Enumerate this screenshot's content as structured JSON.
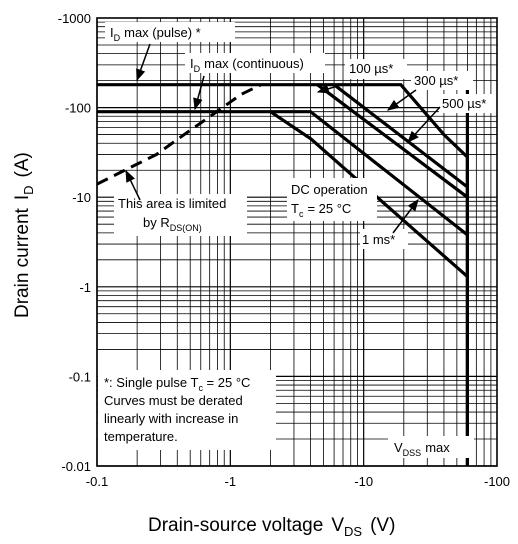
{
  "chart_data": {
    "type": "line",
    "scale": "log-log",
    "x_axis_negative_log": true,
    "y_axis_negative_log": true,
    "xlabel": "Drain-source voltage",
    "xlabel_sub": "DS",
    "xlabel_unit": "(V)",
    "ylabel": "Drain current",
    "ylabel_sub": "D",
    "ylabel_unit": "(A)",
    "xlim": [
      -0.1,
      -100
    ],
    "ylim": [
      -0.01,
      -1000
    ],
    "x_ticks": [
      "-0.1",
      "-1",
      "-10",
      "-100"
    ],
    "y_ticks": [
      "-1000",
      "-100",
      "-10",
      "-1",
      "-0.1",
      "-0.01"
    ],
    "grid": true,
    "series": [
      {
        "name": "ID max (pulse)",
        "style": "solid",
        "x": [
          -0.1,
          -2.0
        ],
        "y": [
          -180,
          -180
        ]
      },
      {
        "name": "ID max (continuous)",
        "style": "solid",
        "x": [
          -0.1,
          -2.0
        ],
        "y": [
          -90,
          -90
        ]
      },
      {
        "name": "This area is limited by RDS(ON)",
        "style": "dashed",
        "x": [
          -0.1,
          -0.28,
          -0.45,
          -0.75,
          -1.2,
          -1.7
        ],
        "y": [
          -14,
          -30,
          -50,
          -85,
          -140,
          -180
        ]
      },
      {
        "name": "100 µs*",
        "style": "solid",
        "x": [
          -2.0,
          -9.5,
          -19,
          -40,
          -60,
          -60
        ],
        "y": [
          -180,
          -180,
          -180,
          -50,
          -28,
          -0.01
        ]
      },
      {
        "name": "300 µs*",
        "style": "solid",
        "x": [
          -6.0,
          -60
        ],
        "y": [
          -180,
          -13
        ]
      },
      {
        "name": "500 µs*",
        "style": "solid",
        "x": [
          -4.5,
          -60
        ],
        "y": [
          -180,
          -10
        ]
      },
      {
        "name": "1 ms*",
        "style": "solid",
        "x": [
          -2.0,
          -4.0,
          -60
        ],
        "y": [
          -90,
          -90,
          -3.8
        ]
      },
      {
        "name": "DC operation Tc = 25 °C",
        "style": "solid",
        "x": [
          -2.0,
          -4.0,
          -60
        ],
        "y": [
          -90,
          -45,
          -1.3
        ]
      },
      {
        "name": "VDSS max",
        "style": "solid",
        "x": [
          -60,
          -60
        ],
        "y": [
          -180,
          -0.01
        ]
      }
    ],
    "annotations": {
      "id_pulse_main": "I",
      "id_pulse_sub": "D",
      "id_pulse_rest": "max (pulse) *",
      "id_cont_main": "I",
      "id_cont_sub": "D",
      "id_cont_rest": "max (continuous)",
      "us100": "100 µs*",
      "us300": "300 µs*",
      "us500": "500 µs*",
      "ms1": "1 ms*",
      "dc_line1": "DC operation",
      "dc_tc_main": "T",
      "dc_tc_sub": "c",
      "dc_tc_rest": "= 25 °C",
      "rds_line1": "This area is limited",
      "rds_line2_main": "by R",
      "rds_line2_sub": "DS(ON)",
      "vdss_main": "V",
      "vdss_sub": "DSS",
      "vdss_rest": "max",
      "note_line1_main": "*: Single pulse  T",
      "note_line1_sub": "c",
      "note_line1_rest": " = 25 °C",
      "note_line2": "Curves must be derated",
      "note_line3": "linearly with increase in",
      "note_line4": "temperature."
    }
  }
}
